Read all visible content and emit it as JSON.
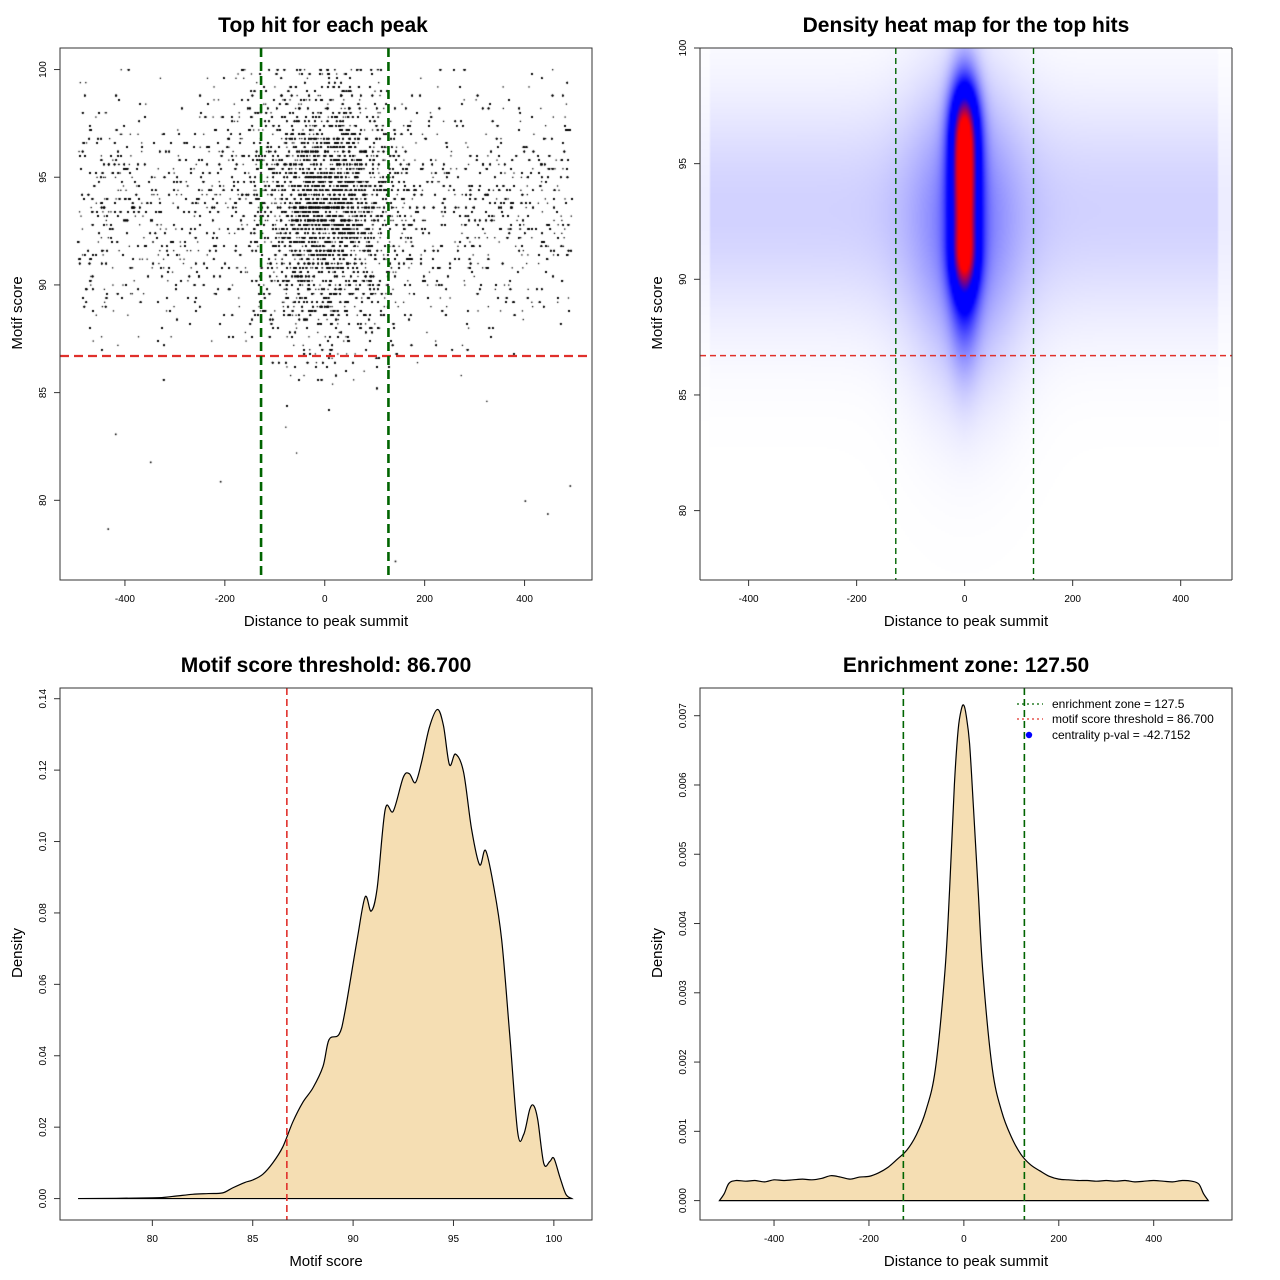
{
  "colors": {
    "threshold_line": "#e0302b",
    "zone_line": "#006400",
    "density_fill": "#f5deb3",
    "heat_low": "#ffffff",
    "heat_mid": "#0000ff",
    "heat_high": "#ff0000",
    "pval_marker": "#0000ff",
    "ink": "#000000"
  },
  "chart_data": [
    {
      "id": "scatter",
      "type": "scatter",
      "title": "Top hit for each peak",
      "xlabel": "Distance to peak summit",
      "ylabel": "Motif score",
      "xlim": [
        -530,
        535
      ],
      "ylim": [
        76.3,
        101.0
      ],
      "xticks": [
        -400,
        -200,
        0,
        200,
        400
      ],
      "yticks": [
        80,
        85,
        90,
        95,
        100
      ],
      "xtick_labels": [
        "-400",
        "-200",
        "0",
        "200",
        "400"
      ],
      "ytick_labels": [
        "80",
        "85",
        "90",
        "95",
        "100"
      ],
      "threshold_y": 86.7,
      "zone_x": [
        -127.5,
        127.5
      ],
      "point_x_range": [
        -495,
        495
      ],
      "score_levels_step": 0.2,
      "center_sd": 70,
      "score_center": 93.5,
      "score_sd": 3.0,
      "sample_outliers": [
        {
          "x": -435,
          "y": 78.7
        },
        {
          "x": -420,
          "y": 83.1
        },
        {
          "x": -350,
          "y": 81.8
        },
        {
          "x": -210,
          "y": 80.9
        },
        {
          "x": 140,
          "y": 77.2
        },
        {
          "x": 400,
          "y": 80.0
        },
        {
          "x": 445,
          "y": 79.4
        },
        {
          "x": 490,
          "y": 80.7
        }
      ]
    },
    {
      "id": "heatmap",
      "type": "heatmap",
      "title": "Density heat map for the top hits",
      "xlabel": "Distance to peak summit",
      "ylabel": "Motif score",
      "xlim": [
        -490,
        495
      ],
      "ylim": [
        77.0,
        100.0
      ],
      "xticks": [
        -400,
        -200,
        0,
        200,
        400
      ],
      "yticks": [
        80,
        85,
        90,
        95,
        100
      ],
      "xtick_labels": [
        "-400",
        "-200",
        "0",
        "200",
        "400"
      ],
      "ytick_labels": [
        "80",
        "85",
        "90",
        "95",
        "100"
      ],
      "threshold_y": 86.7,
      "zone_x": [
        -127.5,
        127.5
      ],
      "core": {
        "x_center": 0,
        "x_sd": 18,
        "y_center": 94.2,
        "y_sd": 2.6,
        "y_skew_low": 3.2
      }
    },
    {
      "id": "score-density",
      "type": "area",
      "title": "Motif score threshold: 86.700",
      "xlabel": "Motif score",
      "ylabel": "Density",
      "xlim": [
        75.4,
        101.9
      ],
      "ylim": [
        -0.006,
        0.143
      ],
      "xticks": [
        80,
        85,
        90,
        95,
        100
      ],
      "yticks": [
        0.0,
        0.02,
        0.04,
        0.06,
        0.08,
        0.1,
        0.12,
        0.14
      ],
      "xtick_labels": [
        "80",
        "85",
        "90",
        "95",
        "100"
      ],
      "ytick_labels": [
        "0.00",
        "0.02",
        "0.04",
        "0.06",
        "0.08",
        "0.10",
        "0.12",
        "0.14"
      ],
      "threshold_x": 86.7,
      "x": [
        76.3,
        80,
        81,
        82,
        82.8,
        83.5,
        84,
        84.6,
        85,
        85.5,
        86,
        86.5,
        87,
        87.5,
        88,
        88.5,
        88.8,
        89.3,
        89.6,
        90.2,
        90.6,
        90.9,
        91.2,
        91.6,
        92,
        92.5,
        92.8,
        93.1,
        93.4,
        93.8,
        94.2,
        94.5,
        94.8,
        95.1,
        95.5,
        95.9,
        96.3,
        96.6,
        97,
        97.4,
        97.8,
        98.2,
        98.5,
        98.8,
        99,
        99.2,
        99.5,
        99.8,
        100,
        100.3,
        100.6,
        100.9
      ],
      "y": [
        0.0,
        0.0002,
        0.0006,
        0.0012,
        0.0014,
        0.0016,
        0.003,
        0.0045,
        0.0052,
        0.0068,
        0.01,
        0.0145,
        0.0215,
        0.027,
        0.031,
        0.037,
        0.0445,
        0.046,
        0.0525,
        0.0725,
        0.0845,
        0.0805,
        0.087,
        0.109,
        0.1085,
        0.118,
        0.119,
        0.1165,
        0.122,
        0.132,
        0.137,
        0.1325,
        0.1215,
        0.1245,
        0.1195,
        0.1035,
        0.0935,
        0.0975,
        0.0875,
        0.0725,
        0.046,
        0.0185,
        0.018,
        0.025,
        0.026,
        0.022,
        0.0098,
        0.0104,
        0.0113,
        0.006,
        0.0012,
        0.0
      ]
    },
    {
      "id": "distance-density",
      "type": "area",
      "title": "Enrichment zone: 127.50",
      "xlabel": "Distance to peak summit",
      "ylabel": "Density",
      "xlim": [
        -556,
        565
      ],
      "ylim": [
        -0.00028,
        0.0074
      ],
      "xticks": [
        -400,
        -200,
        0,
        200,
        400
      ],
      "yticks": [
        0.0,
        0.001,
        0.002,
        0.003,
        0.004,
        0.005,
        0.006,
        0.007
      ],
      "xtick_labels": [
        "-400",
        "-200",
        "0",
        "200",
        "400"
      ],
      "ytick_labels": [
        "0.000",
        "0.001",
        "0.002",
        "0.003",
        "0.004",
        "0.005",
        "0.006",
        "0.007"
      ],
      "zone_x": [
        -127.5,
        127.5
      ],
      "x": [
        -515,
        -505,
        -495,
        -480,
        -460,
        -440,
        -420,
        -400,
        -380,
        -360,
        -340,
        -320,
        -300,
        -280,
        -260,
        -240,
        -220,
        -200,
        -180,
        -160,
        -140,
        -120,
        -100,
        -80,
        -60,
        -40,
        -30,
        -20,
        -12,
        -5,
        0,
        5,
        12,
        20,
        30,
        40,
        60,
        80,
        100,
        120,
        140,
        160,
        180,
        200,
        220,
        240,
        260,
        280,
        300,
        320,
        340,
        360,
        380,
        400,
        420,
        440,
        460,
        480,
        495,
        505,
        515
      ],
      "y": [
        0.0,
        0.0001,
        0.00025,
        0.00029,
        0.00028,
        0.00029,
        0.00027,
        0.0003,
        0.00029,
        0.0003,
        0.00031,
        0.0003,
        0.00032,
        0.00036,
        0.00034,
        0.00031,
        0.00034,
        0.00035,
        0.0004,
        0.00048,
        0.0006,
        0.00073,
        0.00095,
        0.0013,
        0.0019,
        0.0033,
        0.0045,
        0.006,
        0.0068,
        0.0071,
        0.00715,
        0.007,
        0.0066,
        0.0057,
        0.0045,
        0.0033,
        0.0019,
        0.00128,
        0.00092,
        0.00067,
        0.00052,
        0.00043,
        0.00035,
        0.00031,
        0.0003,
        0.00029,
        0.00029,
        0.00028,
        0.00029,
        0.00028,
        0.00029,
        0.00027,
        0.00028,
        0.00029,
        0.00028,
        0.00027,
        0.00029,
        0.00028,
        0.00024,
        0.0001,
        0.0
      ],
      "legend": {
        "position": "top-right",
        "entries": [
          {
            "label": "enrichment zone = 127.5",
            "style": "dotted-line",
            "color": "#006400"
          },
          {
            "label": "motif score threshold = 86.700",
            "style": "dotted-line",
            "color": "#e0302b"
          },
          {
            "label": "centrality p-val = -42.7152",
            "style": "point",
            "color": "#0000ff"
          }
        ]
      }
    }
  ]
}
